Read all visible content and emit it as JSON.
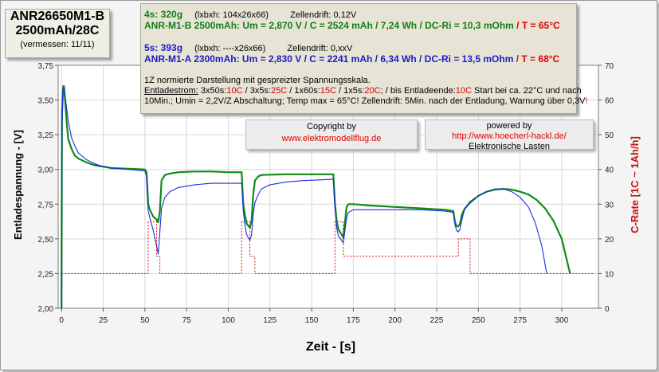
{
  "title": {
    "line1": "ANR26650M1-B",
    "line2": "2500mAh/28C",
    "line3": "(vermessen: 11/11)"
  },
  "info": {
    "r1a": "4s: 320g",
    "r1b": "(lxbxh: 104x26x66)",
    "r1c": "Zellendrift: 0,12V",
    "r2a": "ANR-M1-B  2500mAh:  Um = 2,870 V / C = 2524 mAh /   7,24 Wh / DC-Ri = 10,3 mOhm",
    "r2b": "/ T = 65°C",
    "r3a": "5s: 393g",
    "r3b": "(lxbxh:  ----x26x66)",
    "r3c": "Zellendrift: 0,xxV",
    "r4a": "ANR-M1-A  2300mAh:  Um = 2,830 V / C = 2241 mAh /   6,34 Wh / DC-Ri = 13,5 mOhm",
    "r4b": "/ T = 68°C",
    "r5": "1Z normierte Darstellung mit gespreizter Spannungsskala.",
    "r6a": "Entladestrom:",
    "r6b": " 3x50s:",
    "r6c": "10C",
    "r6d": " / 3x5s:",
    "r6e": "25C",
    "r6f": " / 1x60s:",
    "r6g": "15C",
    "r6h": " / 1x5s:",
    "r6i": "20C",
    "r6j": ";  /  bis Entladeende:",
    "r6k": "10C",
    "r6l": "  Start bei ca. 22°C und nach",
    "r7a": "10Min.; Umin = 2,2V/Z Abschaltung;  Temp max = 65°C! Zellendrift: 5Min. nach der Entladung, Warnung über 0,3V",
    "r7b": "!"
  },
  "copyright": {
    "label": "Copyright by",
    "url": "www.elektromodellflug.de"
  },
  "powered": {
    "label": "powered by",
    "url": "http://www.hoecherl-hackl.de/",
    "name": "Elektronische Lasten"
  },
  "chart_data": {
    "type": "line",
    "xlabel": "Zeit - [s]",
    "ylabel": "Entladespannung - [V]",
    "y2label": "C-Rate  [1C ~ 1Ah/h]",
    "xlim": [
      -2,
      322
    ],
    "ylim": [
      2.0,
      3.75
    ],
    "y2lim": [
      0,
      70
    ],
    "xticks": [
      0,
      25,
      50,
      75,
      100,
      125,
      150,
      175,
      200,
      225,
      250,
      275,
      300
    ],
    "yticks": [
      2.0,
      2.25,
      2.5,
      2.75,
      3.0,
      3.25,
      3.5,
      3.75
    ],
    "yticklabels": [
      "2,00",
      "2,25",
      "2,50",
      "2,75",
      "3,00",
      "3,25",
      "3,50",
      "3,75"
    ],
    "y2ticks": [
      0,
      10,
      20,
      30,
      40,
      50,
      60,
      70
    ],
    "grid": true,
    "colors": {
      "green": "#118a18",
      "blue": "#1a2be8",
      "red": "#cc1010"
    },
    "series": [
      {
        "name": "ANR-M1-B",
        "axis": "left",
        "color": "#118a18",
        "x": [
          0,
          0.3,
          1,
          1.5,
          2,
          3,
          4,
          6,
          8,
          10,
          15,
          20,
          25,
          30,
          40,
          50,
          51,
          52,
          53,
          55,
          57,
          58,
          59,
          60,
          62,
          65,
          70,
          80,
          90,
          100,
          108,
          109,
          110,
          111,
          113,
          114,
          115,
          116,
          118,
          120,
          125,
          135,
          145,
          155,
          163,
          164,
          165,
          166,
          168,
          169,
          170,
          171,
          172,
          175,
          185,
          200,
          215,
          230,
          235,
          236,
          237,
          238,
          239,
          240,
          241,
          242,
          245,
          250,
          255,
          260,
          265,
          270,
          275,
          280,
          285,
          290,
          295,
          300,
          303,
          305
        ],
        "values": [
          2.0,
          3.4,
          3.6,
          3.6,
          3.52,
          3.35,
          3.22,
          3.15,
          3.1,
          3.08,
          3.05,
          3.03,
          3.02,
          3.01,
          3.005,
          3.0,
          2.98,
          2.75,
          2.71,
          2.66,
          2.64,
          2.62,
          2.7,
          2.92,
          2.96,
          2.97,
          2.98,
          2.985,
          2.985,
          2.98,
          2.98,
          2.75,
          2.67,
          2.61,
          2.58,
          2.63,
          2.82,
          2.92,
          2.95,
          2.96,
          2.962,
          2.965,
          2.965,
          2.965,
          2.965,
          2.75,
          2.63,
          2.57,
          2.53,
          2.51,
          2.62,
          2.73,
          2.75,
          2.75,
          2.74,
          2.73,
          2.72,
          2.71,
          2.7,
          2.62,
          2.59,
          2.59,
          2.61,
          2.67,
          2.7,
          2.72,
          2.76,
          2.81,
          2.84,
          2.855,
          2.86,
          2.855,
          2.84,
          2.82,
          2.78,
          2.72,
          2.63,
          2.5,
          2.35,
          2.25
        ]
      },
      {
        "name": "ANR-M1-A",
        "axis": "left",
        "color": "#1a2be8",
        "x": [
          0,
          0.3,
          0.8,
          1.5,
          2.5,
          4,
          6,
          8,
          10,
          15,
          20,
          25,
          30,
          40,
          50,
          51,
          52,
          53,
          55,
          57,
          58,
          59,
          60,
          62,
          65,
          70,
          80,
          90,
          100,
          108,
          109,
          110,
          111,
          113,
          114,
          115,
          116,
          118,
          120,
          125,
          135,
          145,
          155,
          163,
          164,
          165,
          166,
          168,
          169,
          170,
          171,
          172,
          175,
          185,
          200,
          215,
          230,
          235,
          236,
          237,
          238,
          239,
          240,
          241,
          242,
          245,
          250,
          255,
          260,
          265,
          270,
          275,
          280,
          284,
          288,
          291
        ],
        "values": [
          2.0,
          3.3,
          3.58,
          3.58,
          3.5,
          3.35,
          3.23,
          3.17,
          3.12,
          3.07,
          3.04,
          3.02,
          3.01,
          3.0,
          2.99,
          2.95,
          2.7,
          2.65,
          2.56,
          2.45,
          2.39,
          2.55,
          2.72,
          2.8,
          2.84,
          2.87,
          2.89,
          2.9,
          2.9,
          2.9,
          2.7,
          2.6,
          2.53,
          2.49,
          2.53,
          2.68,
          2.76,
          2.82,
          2.86,
          2.89,
          2.91,
          2.92,
          2.925,
          2.93,
          2.72,
          2.58,
          2.52,
          2.49,
          2.47,
          2.56,
          2.65,
          2.69,
          2.71,
          2.71,
          2.71,
          2.71,
          2.7,
          2.69,
          2.6,
          2.56,
          2.55,
          2.57,
          2.63,
          2.68,
          2.72,
          2.77,
          2.81,
          2.84,
          2.86,
          2.86,
          2.84,
          2.8,
          2.73,
          2.62,
          2.45,
          2.25
        ]
      },
      {
        "name": "C-Rate",
        "axis": "right",
        "color": "#cc1010",
        "dashed": true,
        "x": [
          0,
          52,
          52,
          57,
          57,
          59,
          59,
          108,
          108,
          113,
          113,
          116,
          116,
          164,
          164,
          169,
          169,
          171,
          171,
          230,
          230,
          236,
          236,
          238,
          238,
          240,
          240,
          245,
          245,
          320
        ],
        "values": [
          10,
          10,
          25,
          25,
          15,
          15,
          10,
          10,
          25,
          25,
          15,
          15,
          10,
          10,
          25,
          25,
          15,
          15,
          15,
          15,
          15,
          15,
          15,
          15,
          20,
          20,
          20,
          20,
          10,
          10
        ]
      }
    ]
  }
}
